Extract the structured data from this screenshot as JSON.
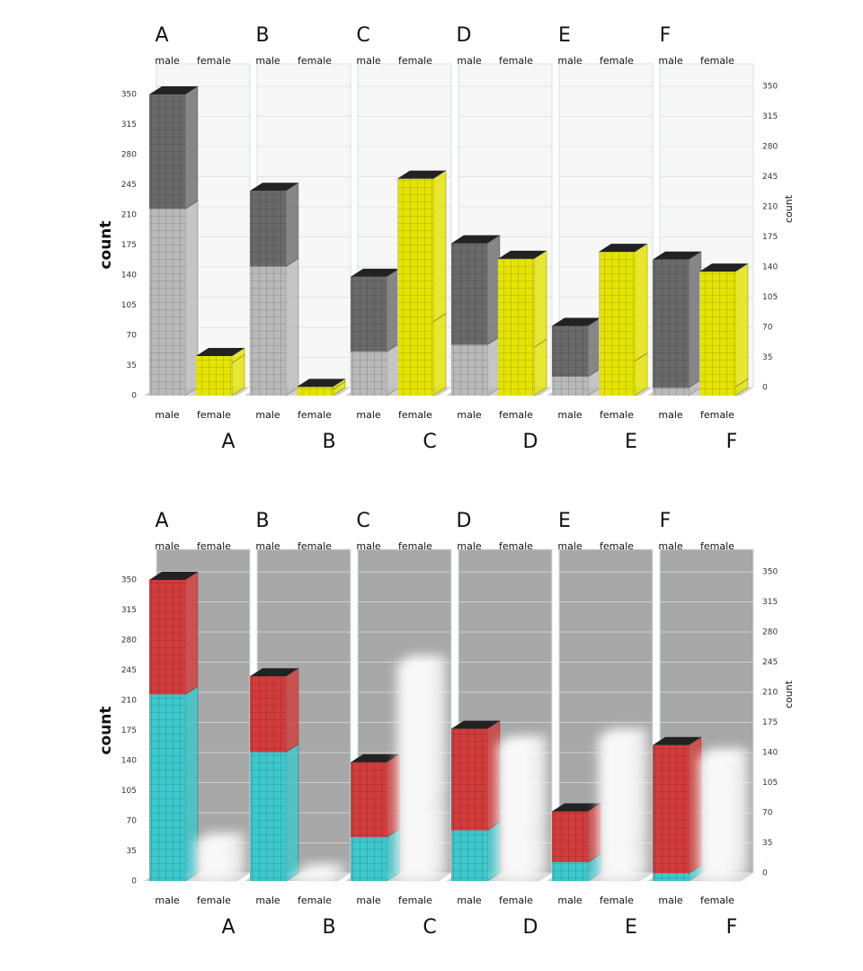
{
  "chart_data": [
    {
      "type": "bar3d",
      "facets": [
        "A",
        "B",
        "C",
        "D",
        "E",
        "F"
      ],
      "groups": [
        "male",
        "female"
      ],
      "ylabel": "count",
      "ylim": [
        0,
        350
      ],
      "yticks": [
        0,
        35,
        70,
        105,
        140,
        175,
        210,
        245,
        280,
        315,
        350
      ],
      "wall": "#f7f7f7",
      "glow": [
        false,
        false
      ],
      "series": [
        {
          "colors": [
            "#b9b9b9",
            "#e4e400"
          ],
          "values": [
            [
              217,
              38
            ],
            [
              150,
              7
            ],
            [
              51,
              86
            ],
            [
              59,
              56
            ],
            [
              22,
              40
            ],
            [
              9,
              10
            ]
          ]
        },
        {
          "colors": [
            "#6a6a6a",
            "#e4e400"
          ],
          "values": [
            [
              133,
              8
            ],
            [
              88,
              3
            ],
            [
              87,
              166
            ],
            [
              118,
              103
            ],
            [
              59,
              127
            ],
            [
              149,
              134
            ]
          ]
        }
      ]
    },
    {
      "type": "bar3d",
      "facets": [
        "A",
        "B",
        "C",
        "D",
        "E",
        "F"
      ],
      "groups": [
        "male",
        "female"
      ],
      "ylabel": "count",
      "ylim": [
        0,
        350
      ],
      "yticks": [
        0,
        35,
        70,
        105,
        140,
        175,
        210,
        245,
        280,
        315,
        350
      ],
      "wall": "#a8a8a8",
      "glow": [
        false,
        true
      ],
      "series": [
        {
          "colors": [
            "#3cc8cc",
            "#ffffff"
          ],
          "values": [
            [
              217,
              38
            ],
            [
              150,
              7
            ],
            [
              51,
              86
            ],
            [
              59,
              56
            ],
            [
              22,
              40
            ],
            [
              9,
              10
            ]
          ]
        },
        {
          "colors": [
            "#d23c3c",
            "#ffffff"
          ],
          "values": [
            [
              133,
              8
            ],
            [
              88,
              3
            ],
            [
              87,
              166
            ],
            [
              118,
              103
            ],
            [
              59,
              127
            ],
            [
              149,
              134
            ]
          ]
        }
      ]
    }
  ]
}
